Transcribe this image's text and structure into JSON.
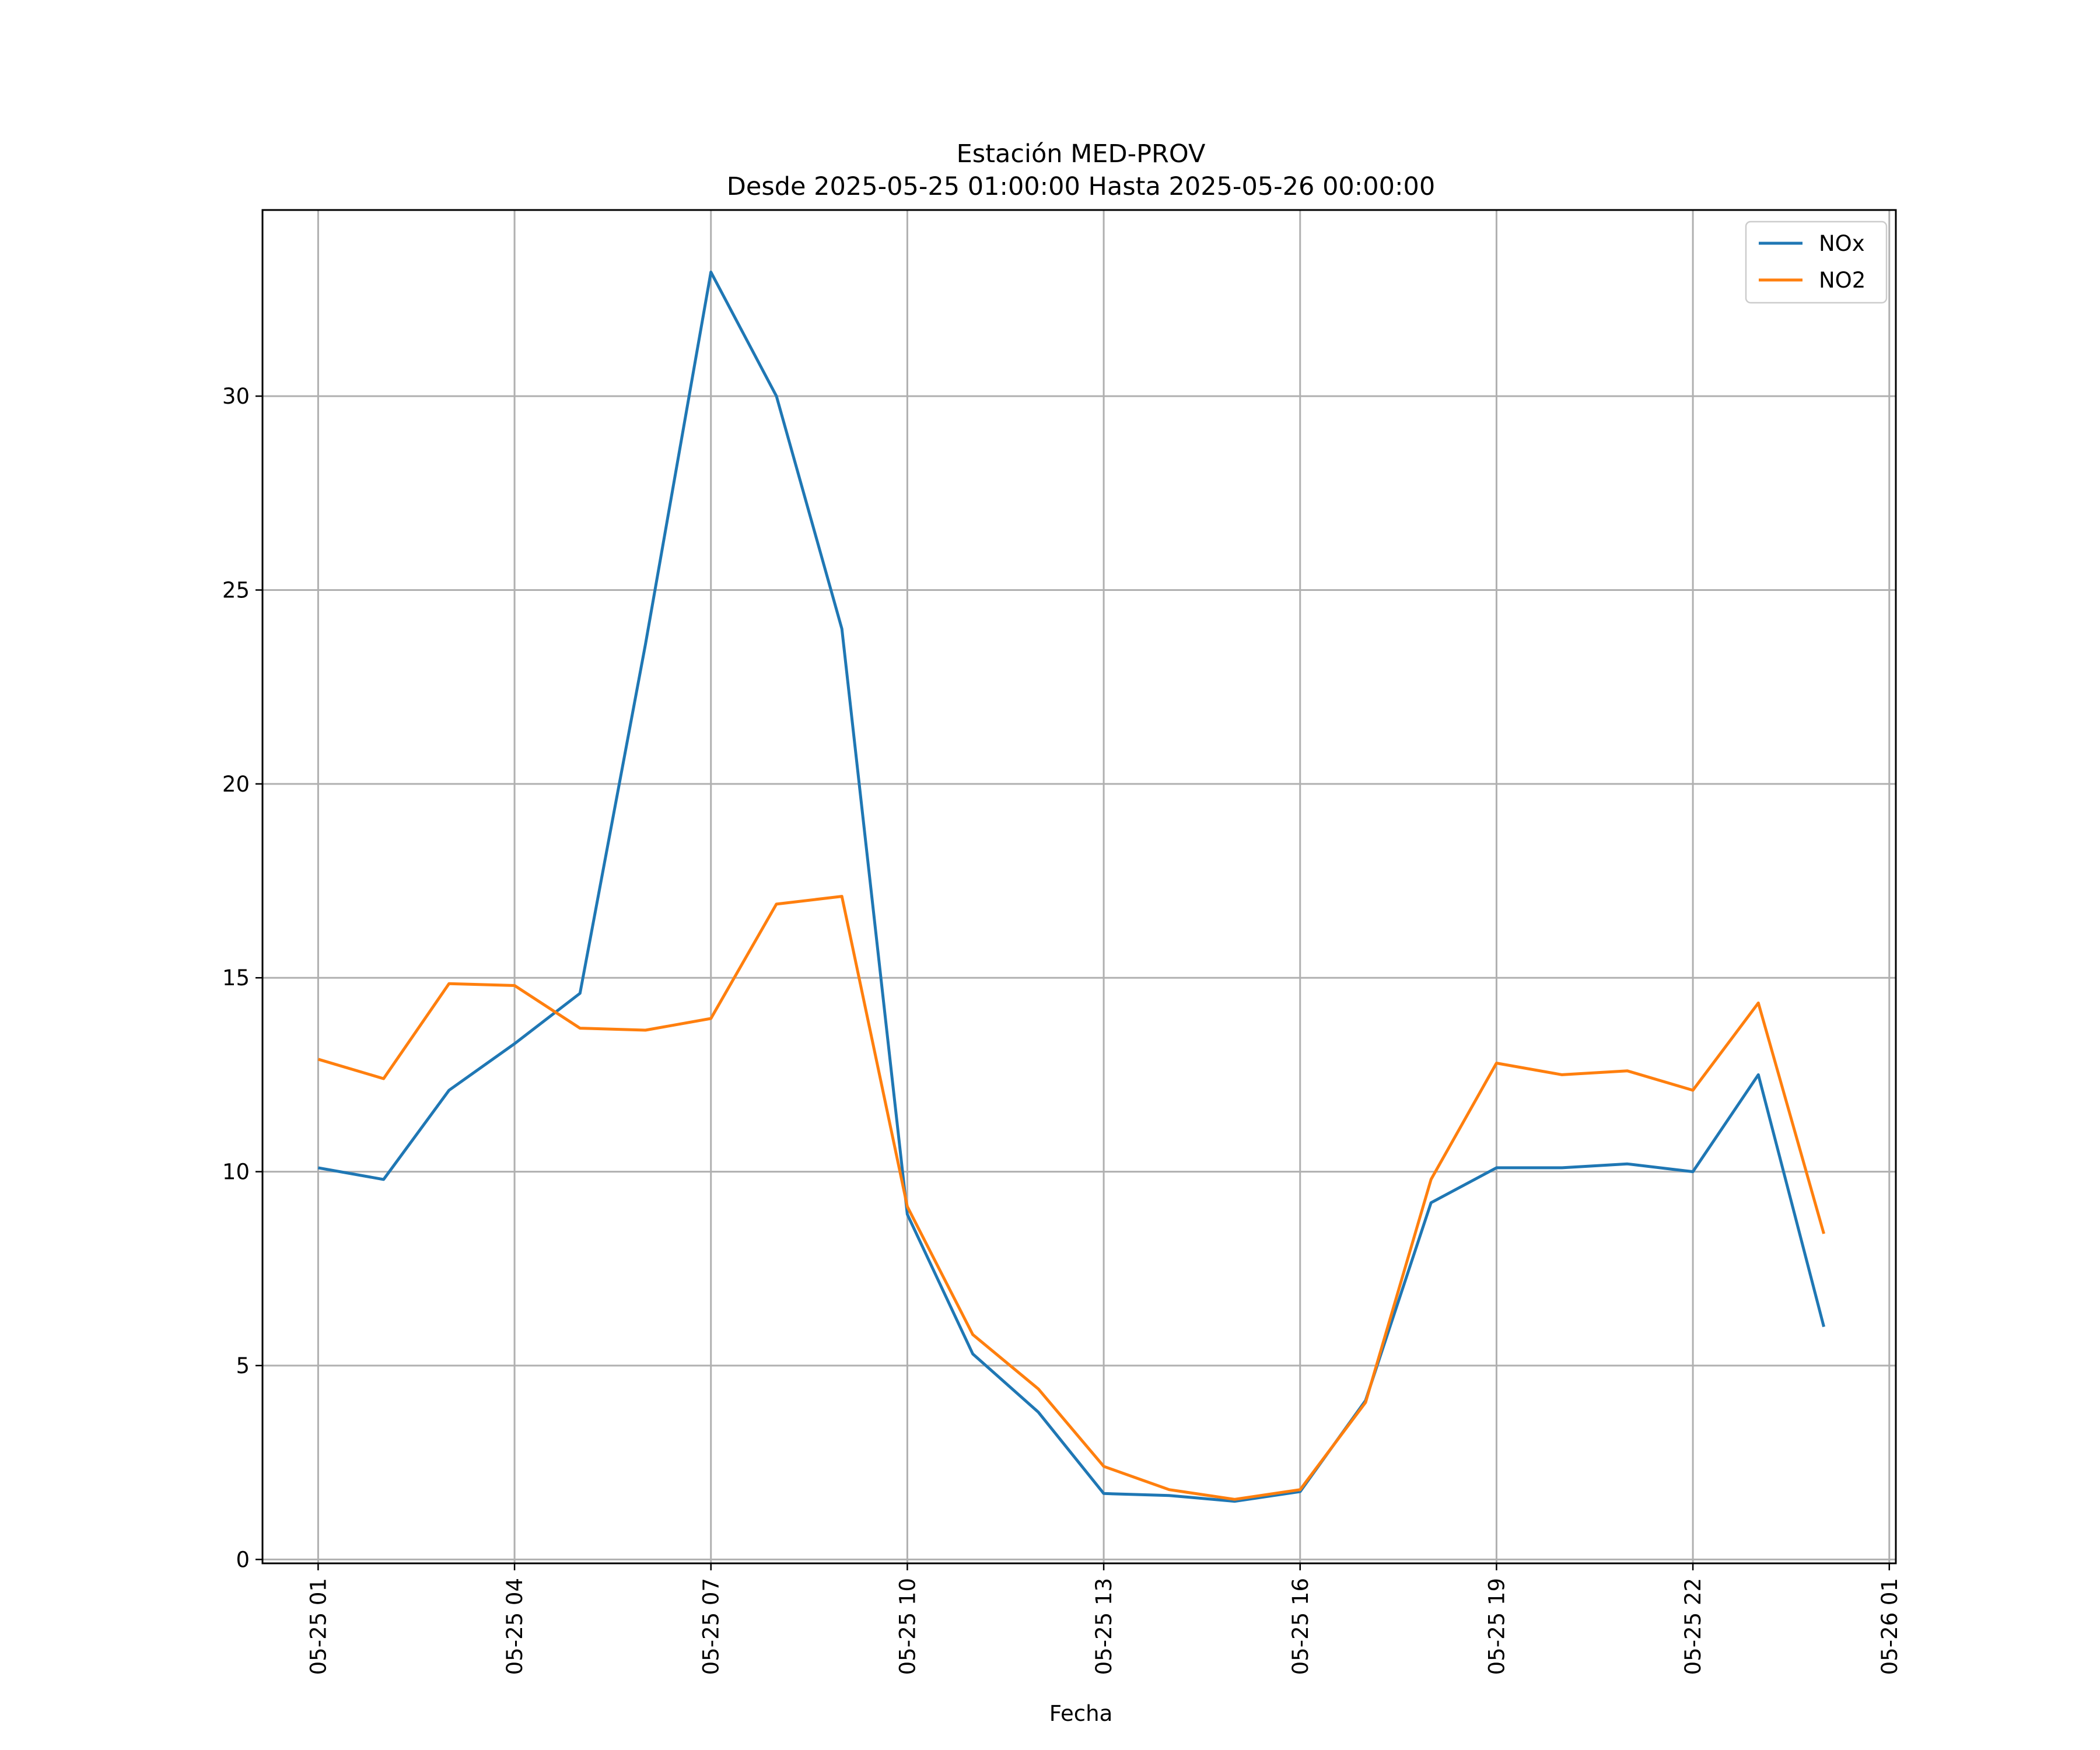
{
  "chart_data": {
    "type": "line",
    "title": "Estación MED-PROV",
    "subtitle": "Desde 2025-05-25 01:00:00 Hasta 2025-05-26 00:00:00",
    "xlabel": "Fecha",
    "ylabel": "",
    "x": [
      "2025-05-25 01:00",
      "2025-05-25 02:00",
      "2025-05-25 03:00",
      "2025-05-25 04:00",
      "2025-05-25 05:00",
      "2025-05-25 06:00",
      "2025-05-25 07:00",
      "2025-05-25 08:00",
      "2025-05-25 09:00",
      "2025-05-25 10:00",
      "2025-05-25 11:00",
      "2025-05-25 12:00",
      "2025-05-25 13:00",
      "2025-05-25 14:00",
      "2025-05-25 15:00",
      "2025-05-25 16:00",
      "2025-05-25 17:00",
      "2025-05-25 18:00",
      "2025-05-25 19:00",
      "2025-05-25 20:00",
      "2025-05-25 21:00",
      "2025-05-25 22:00",
      "2025-05-25 23:00",
      "2025-05-26 00:00"
    ],
    "xlim": [
      "2025-05-25 00:09",
      "2025-05-26 01:06"
    ],
    "x_ticks": [
      "2025-05-25 01:00",
      "2025-05-25 04:00",
      "2025-05-25 07:00",
      "2025-05-25 10:00",
      "2025-05-25 13:00",
      "2025-05-25 16:00",
      "2025-05-25 19:00",
      "2025-05-25 22:00",
      "2025-05-26 01:00"
    ],
    "x_tick_labels": [
      "05-25 01",
      "05-25 04",
      "05-25 07",
      "05-25 10",
      "05-25 13",
      "05-25 16",
      "05-25 19",
      "05-25 22",
      "05-26 01"
    ],
    "ylim": [
      -0.1,
      34.8
    ],
    "y_ticks": [
      0,
      5,
      10,
      15,
      20,
      25,
      30
    ],
    "y_tick_labels": [
      "0",
      "5",
      "10",
      "15",
      "20",
      "25",
      "30"
    ],
    "grid": true,
    "legend_position": "top-right",
    "series": [
      {
        "name": "NOx",
        "color": "#1f77b4",
        "values": [
          10.1,
          9.8,
          12.1,
          13.3,
          14.6,
          23.6,
          33.2,
          30.0,
          24.0,
          8.9,
          5.3,
          3.8,
          1.7,
          1.65,
          1.5,
          1.75,
          4.1,
          9.2,
          10.1,
          10.1,
          10.2,
          10.0,
          12.5,
          6.0
        ]
      },
      {
        "name": "NO2",
        "color": "#ff7f0e",
        "values": [
          12.9,
          12.4,
          14.85,
          14.8,
          13.7,
          13.65,
          13.95,
          16.9,
          17.1,
          9.1,
          5.8,
          4.4,
          2.4,
          1.8,
          1.55,
          1.8,
          4.05,
          9.8,
          12.8,
          12.5,
          12.6,
          12.1,
          14.35,
          8.4
        ]
      }
    ]
  }
}
